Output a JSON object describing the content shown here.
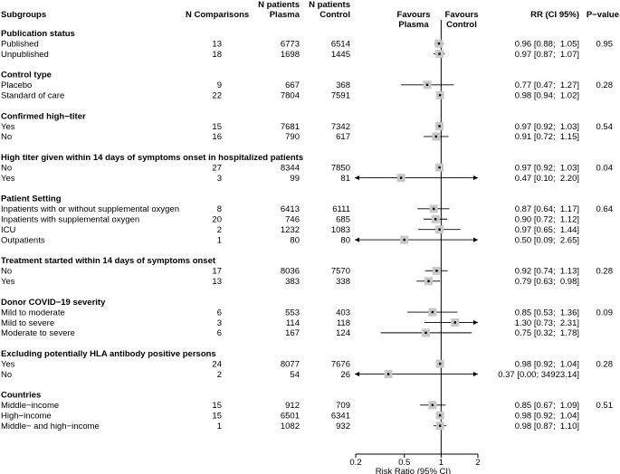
{
  "headers": {
    "subgroups": "Subgroups",
    "n_comparisons": "N Comparisons",
    "n_plasma": [
      "N patients",
      "Plasma"
    ],
    "n_control": [
      "N patients",
      "Control"
    ],
    "favours_plasma": [
      "Favours",
      "Plasma"
    ],
    "favours_control": [
      "Favours",
      "Control"
    ],
    "rr_ci": "RR (CI 95%)",
    "p_value": "P−value"
  },
  "chart_data": {
    "type": "forest",
    "x_axis": {
      "label": "Risk Ratio (95% CI)",
      "scale": "log",
      "ticks": [
        0.2,
        0.5,
        1,
        2
      ],
      "tick_labels": [
        "0.2",
        "0.5",
        "1",
        "2"
      ],
      "xlim": [
        0.2,
        2
      ],
      "reference_line": 1
    },
    "groups": [
      {
        "title": "Publication status",
        "p": "0.95",
        "rows": [
          {
            "label": "Published",
            "n": "13",
            "plasma": "6773",
            "control": "6514",
            "rr": 0.96,
            "lo": 0.88,
            "hi": 1.05,
            "text": "0.96 [0.88;  1.05]"
          },
          {
            "label": "Unpublished",
            "n": "18",
            "plasma": "1698",
            "control": "1445",
            "rr": 0.97,
            "lo": 0.87,
            "hi": 1.07,
            "text": "0.97 [0.87;  1.07]"
          }
        ]
      },
      {
        "title": "Control type",
        "p": "0.28",
        "rows": [
          {
            "label": "Placebo",
            "n": "9",
            "plasma": "667",
            "control": "368",
            "rr": 0.77,
            "lo": 0.47,
            "hi": 1.27,
            "text": "0.77 [0.47;  1.27]"
          },
          {
            "label": "Standard of care",
            "n": "22",
            "plasma": "7804",
            "control": "7591",
            "rr": 0.98,
            "lo": 0.94,
            "hi": 1.02,
            "text": "0.98 [0.94;  1.02]"
          }
        ]
      },
      {
        "title": "Confirmed high−titer",
        "p": "0.54",
        "rows": [
          {
            "label": "Yes",
            "n": "15",
            "plasma": "7681",
            "control": "7342",
            "rr": 0.97,
            "lo": 0.92,
            "hi": 1.03,
            "text": "0.97 [0.92;  1.03]"
          },
          {
            "label": "No",
            "n": "16",
            "plasma": "790",
            "control": "617",
            "rr": 0.91,
            "lo": 0.72,
            "hi": 1.15,
            "text": "0.91 [0.72;  1.15]"
          }
        ]
      },
      {
        "title": "High titer given within 14 days of symptoms onset in hospitalized patients",
        "p": "0.04",
        "rows": [
          {
            "label": "No",
            "n": "27",
            "plasma": "8344",
            "control": "7850",
            "rr": 0.97,
            "lo": 0.92,
            "hi": 1.03,
            "text": "0.97 [0.92;  1.03]"
          },
          {
            "label": "Yes",
            "n": "3",
            "plasma": "99",
            "control": "81",
            "rr": 0.47,
            "lo": 0.1,
            "hi": 2.2,
            "text": "0.47 [0.10;  2.20]"
          }
        ]
      },
      {
        "title": "Patient Setting",
        "p": "0.64",
        "rows": [
          {
            "label": "Inpatients with or without supplemental oxygen",
            "n": "8",
            "plasma": "6413",
            "control": "6111",
            "rr": 0.87,
            "lo": 0.64,
            "hi": 1.17,
            "text": "0.87 [0.64;  1.17]"
          },
          {
            "label": "Inpatients with supplemental oxygen",
            "n": "20",
            "plasma": "746",
            "control": "685",
            "rr": 0.9,
            "lo": 0.72,
            "hi": 1.12,
            "text": "0.90 [0.72;  1.12]"
          },
          {
            "label": "ICU",
            "n": "2",
            "plasma": "1232",
            "control": "1083",
            "rr": 0.97,
            "lo": 0.65,
            "hi": 1.44,
            "text": "0.97 [0.65;  1.44]"
          },
          {
            "label": "Outpatients",
            "n": "1",
            "plasma": "80",
            "control": "80",
            "rr": 0.5,
            "lo": 0.09,
            "hi": 2.65,
            "text": "0.50 [0.09;  2.65]"
          }
        ]
      },
      {
        "title": "Treatment started within 14 days of symptoms onset",
        "p": "0.28",
        "rows": [
          {
            "label": "No",
            "n": "17",
            "plasma": "8036",
            "control": "7570",
            "rr": 0.92,
            "lo": 0.74,
            "hi": 1.13,
            "text": "0.92 [0.74;  1.13]"
          },
          {
            "label": "Yes",
            "n": "13",
            "plasma": "383",
            "control": "338",
            "rr": 0.79,
            "lo": 0.63,
            "hi": 0.98,
            "text": "0.79 [0.63;  0.98]"
          }
        ]
      },
      {
        "title": "Donor COVID−19 severity",
        "p": "0.09",
        "rows": [
          {
            "label": "Mild to moderate",
            "n": "6",
            "plasma": "553",
            "control": "403",
            "rr": 0.85,
            "lo": 0.53,
            "hi": 1.36,
            "text": "0.85 [0.53;  1.36]"
          },
          {
            "label": "Mild to severe",
            "n": "3",
            "plasma": "114",
            "control": "118",
            "rr": 1.3,
            "lo": 0.73,
            "hi": 2.31,
            "text": "1.30 [0.73;  2.31]"
          },
          {
            "label": "Moderate to severe",
            "n": "6",
            "plasma": "167",
            "control": "124",
            "rr": 0.75,
            "lo": 0.32,
            "hi": 1.78,
            "text": "0.75 [0.32;  1.78]"
          }
        ]
      },
      {
        "title": "Excluding potentially HLA antibody positive persons",
        "p": "0.28",
        "rows": [
          {
            "label": "Yes",
            "n": "24",
            "plasma": "8077",
            "control": "7676",
            "rr": 0.98,
            "lo": 0.92,
            "hi": 1.04,
            "text": "0.98 [0.92;  1.04]"
          },
          {
            "label": "No",
            "n": "2",
            "plasma": "54",
            "control": "26",
            "rr": 0.37,
            "lo": 0.0,
            "hi": 34923.14,
            "text": "0.37 [0.00; 34923.14]"
          }
        ]
      },
      {
        "title": "Countries",
        "p": "0.51",
        "rows": [
          {
            "label": "Middle−income",
            "n": "15",
            "plasma": "912",
            "control": "709",
            "rr": 0.85,
            "lo": 0.67,
            "hi": 1.09,
            "text": "0.85 [0.67;  1.09]"
          },
          {
            "label": "High−income",
            "n": "15",
            "plasma": "6501",
            "control": "6341",
            "rr": 0.98,
            "lo": 0.92,
            "hi": 1.04,
            "text": "0.98 [0.92;  1.04]"
          },
          {
            "label": "Middle− and high−income",
            "n": "1",
            "plasma": "1082",
            "control": "932",
            "rr": 0.98,
            "lo": 0.87,
            "hi": 1.1,
            "text": "0.98 [0.87;  1.10]"
          }
        ]
      }
    ]
  }
}
